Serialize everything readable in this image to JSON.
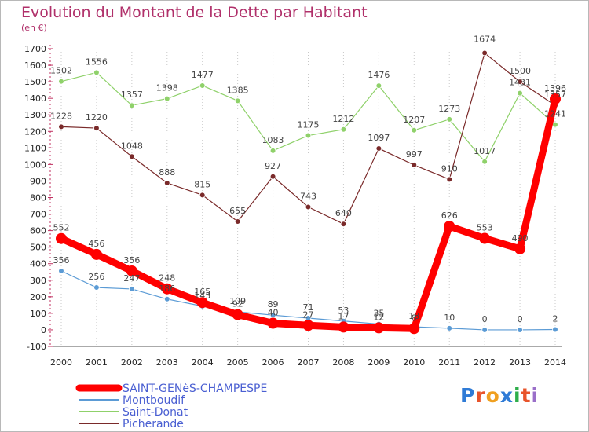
{
  "title": "Evolution du Montant de la Dette par Habitant",
  "subtitle": "(en €)",
  "logo": {
    "letters": [
      "P",
      "r",
      "o",
      "x",
      "i",
      "t",
      "i"
    ],
    "colors": [
      "#2f7bd6",
      "#e8542b",
      "#f0a020",
      "#2f7bd6",
      "#2fae4b",
      "#e8542b",
      "#9a6fc9"
    ]
  },
  "chart_data": {
    "type": "line",
    "x": [
      2000,
      2001,
      2002,
      2003,
      2004,
      2005,
      2006,
      2007,
      2008,
      2009,
      2010,
      2011,
      2012,
      2013,
      2014
    ],
    "ylim": [
      -100,
      1700
    ],
    "yticks": [
      -100,
      0,
      100,
      200,
      300,
      400,
      500,
      600,
      700,
      800,
      900,
      1000,
      1100,
      1200,
      1300,
      1400,
      1500,
      1600,
      1700
    ],
    "grid": "vertical-dotted",
    "legend_position": "bottom-left",
    "series": [
      {
        "name": "SAINT-GENèS-CHAMPESPE",
        "color": "#ff0000",
        "width": 9,
        "labels": [
          552,
          456,
          356,
          248,
          165,
          92,
          40,
          27,
          17,
          12,
          8,
          626,
          553,
          490,
          1396
        ],
        "values": [
          552,
          456,
          356,
          248,
          165,
          92,
          40,
          27,
          17,
          12,
          8,
          626,
          553,
          490,
          1396
        ]
      },
      {
        "name": "Montboudif",
        "color": "#5b9bd5",
        "width": 1.2,
        "labels": [
          356,
          256,
          247,
          186,
          143,
          109,
          89,
          71,
          53,
          35,
          18,
          10,
          0,
          0,
          2
        ],
        "values": [
          356,
          256,
          247,
          186,
          143,
          109,
          89,
          71,
          53,
          35,
          18,
          10,
          0,
          0,
          2
        ]
      },
      {
        "name": "Saint-Donat",
        "color": "#8fd16a",
        "width": 1.2,
        "labels": [
          1502,
          1556,
          1357,
          1398,
          1477,
          1385,
          1083,
          1175,
          1212,
          1476,
          1207,
          1273,
          1017,
          1431,
          1241
        ],
        "values": [
          1502,
          1556,
          1357,
          1398,
          1477,
          1385,
          1083,
          1175,
          1212,
          1476,
          1207,
          1273,
          1017,
          1431,
          1241
        ]
      },
      {
        "name": "Picherande",
        "color": "#7a2a2a",
        "width": 1.2,
        "labels": [
          1228,
          1220,
          1048,
          888,
          815,
          655,
          927,
          743,
          640,
          1097,
          997,
          910,
          "",
          1500,
          1357
        ],
        "values": [
          1228,
          1220,
          1048,
          888,
          815,
          655,
          927,
          743,
          640,
          1097,
          997,
          910,
          1674,
          1500,
          1357
        ]
      }
    ],
    "annotations": [
      {
        "x": 2012,
        "text": "1674"
      }
    ]
  }
}
